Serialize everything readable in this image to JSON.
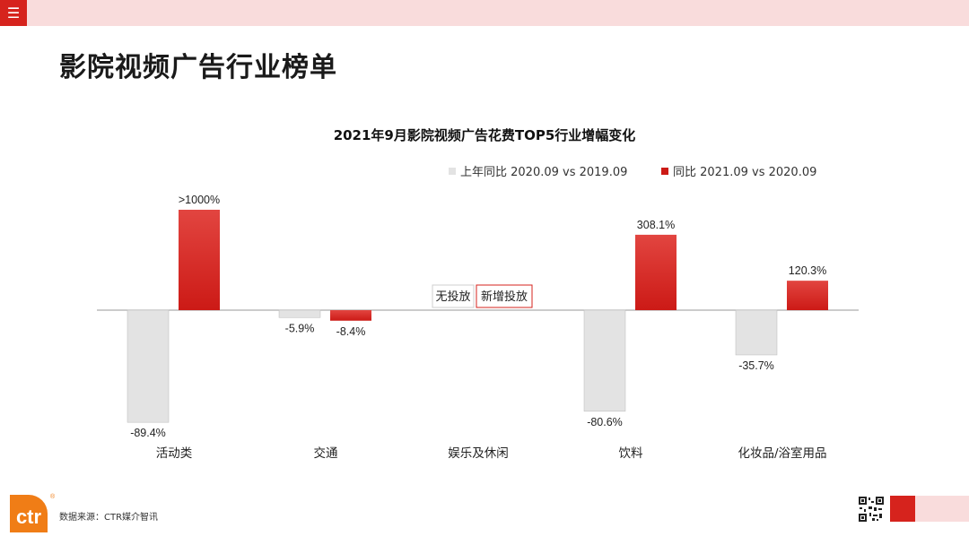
{
  "header": {
    "menu_icon": "☰"
  },
  "page_title": "影院视频广告行业榜单",
  "colors": {
    "accent": "#d6231d",
    "series_prev": "#e3e3e3",
    "series_curr": "#cc1a16",
    "pink": "#f9dcdc"
  },
  "chart_data": {
    "type": "bar",
    "title": "2021年9月影院视频广告花费TOP5行业增幅变化",
    "categories": [
      "活动类",
      "交通",
      "娱乐及休闲",
      "饮料",
      "化妆品/浴室用品"
    ],
    "series": [
      {
        "name": "上年同比 2020.09 vs 2019.09",
        "values": [
          -89.4,
          -5.9,
          null,
          -80.6,
          -35.7
        ],
        "labels": [
          "-89.4%",
          "-5.9%",
          "无投放",
          "-80.6%",
          "-35.7%"
        ]
      },
      {
        "name": "同比 2021.09 vs 2020.09",
        "values": [
          1000,
          -8.4,
          null,
          308.1,
          120.3
        ],
        "labels": [
          ">1000%",
          "-8.4%",
          "新增投放",
          "308.1%",
          "120.3%"
        ]
      }
    ],
    "legend_position": "top-right",
    "grid": false
  },
  "footer": {
    "source": "数据来源：CTR媒介智讯",
    "logo_text": "ctr",
    "logo_mark": "®"
  }
}
